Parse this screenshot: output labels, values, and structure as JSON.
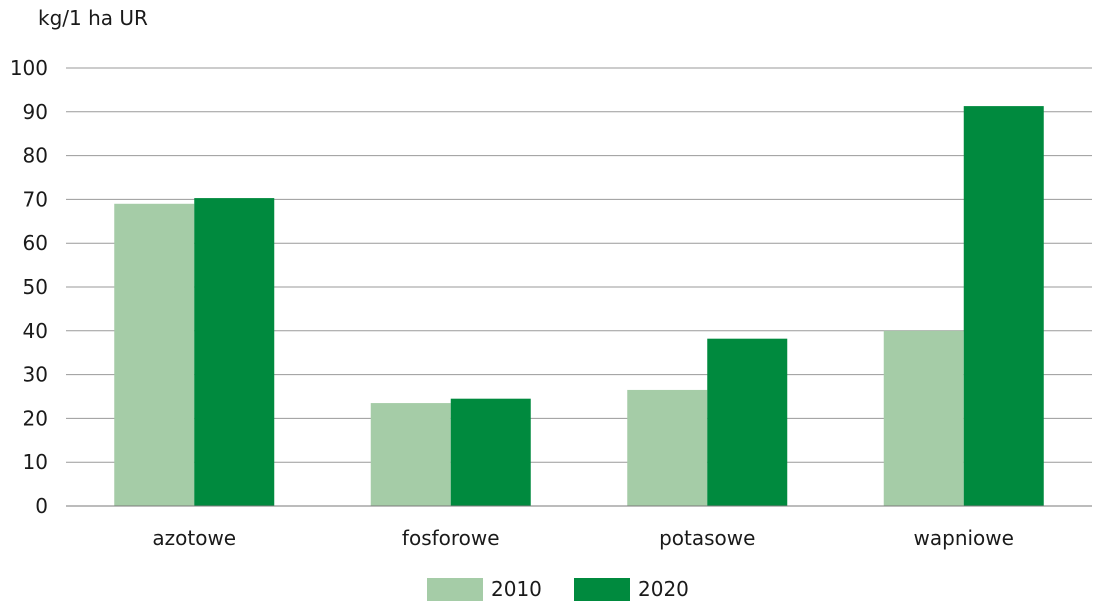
{
  "chart_data": {
    "type": "bar",
    "ylabel": "kg/1 ha UR",
    "categories": [
      "azotowe",
      "fosforowe",
      "potasowe",
      "wapniowe"
    ],
    "series": [
      {
        "name": "2010",
        "color": "#a5cca7",
        "values": [
          69,
          23.5,
          26.5,
          40
        ]
      },
      {
        "name": "2020",
        "color": "#008a3e",
        "values": [
          70.3,
          24.5,
          38.2,
          91.3
        ]
      }
    ],
    "ylim": [
      0,
      100
    ],
    "yticks": [
      0,
      10,
      20,
      30,
      40,
      50,
      60,
      70,
      80,
      90,
      100
    ],
    "grid": true,
    "legend_position": "bottom"
  }
}
